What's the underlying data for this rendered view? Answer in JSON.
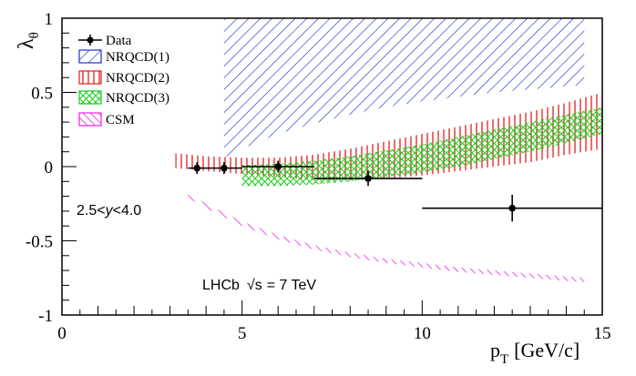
{
  "chart_data": {
    "type": "scatter",
    "xlabel": "p",
    "xlabel_sub": "T",
    "xlabel_unit": "[GeV/c]",
    "ylabel": "λ",
    "ylabel_sub": "θ",
    "xlim": [
      0,
      15
    ],
    "ylim": [
      -1,
      1
    ],
    "x_ticks": [
      0,
      5,
      10,
      15
    ],
    "y_ticks": [
      -1,
      -0.5,
      0,
      0.5,
      1
    ],
    "x_tick_labels": [
      "0",
      "5",
      "10",
      "15"
    ],
    "y_tick_labels": [
      "-1",
      "-0.5",
      "0",
      "0.5",
      "1"
    ],
    "legend_position": "top-left",
    "legend": [
      {
        "name": "Data",
        "color": "#000000",
        "style": "marker"
      },
      {
        "name": "NRQCD(1)",
        "color": "#2233cc",
        "style": "hatch-diagonal-down"
      },
      {
        "name": "NRQCD(2)",
        "color": "#e02020",
        "style": "hatch-vertical"
      },
      {
        "name": "NRQCD(3)",
        "color": "#22cc22",
        "style": "hatch-cross"
      },
      {
        "name": "CSM",
        "color": "#ee22ee",
        "style": "hatch-diagonal-up"
      }
    ],
    "data_points": [
      {
        "x": 3.75,
        "y": -0.01,
        "x_low": 3.5,
        "x_high": 4.0,
        "y_err": 0.04
      },
      {
        "x": 4.5,
        "y": -0.01,
        "x_low": 4.0,
        "x_high": 5.0,
        "y_err": 0.04
      },
      {
        "x": 6.0,
        "y": 0.0,
        "x_low": 5.0,
        "x_high": 7.0,
        "y_err": 0.04
      },
      {
        "x": 8.5,
        "y": -0.08,
        "x_low": 7.0,
        "x_high": 10.0,
        "y_err": 0.05
      },
      {
        "x": 12.5,
        "y": -0.28,
        "x_low": 10.0,
        "x_high": 15.0,
        "y_err": 0.09
      }
    ],
    "bands": [
      {
        "name": "NRQCD(1)",
        "color": "#2233cc",
        "hatch": "diag-down",
        "x": [
          4.5,
          5,
          6,
          7,
          8,
          9,
          10,
          11,
          12,
          13,
          14,
          14.5
        ],
        "low": [
          0.06,
          0.12,
          0.22,
          0.29,
          0.35,
          0.4,
          0.44,
          0.47,
          0.5,
          0.52,
          0.54,
          0.55
        ],
        "high": [
          1,
          1,
          1,
          1,
          1,
          1,
          1,
          1,
          1,
          1,
          1,
          1
        ]
      },
      {
        "name": "NRQCD(2)",
        "color": "#e02020",
        "hatch": "vertical",
        "x": [
          3.15,
          4,
          5,
          6,
          7,
          8,
          9,
          10,
          11,
          12,
          13,
          14,
          15
        ],
        "low": [
          -0.01,
          -0.03,
          -0.05,
          -0.07,
          -0.09,
          -0.09,
          -0.08,
          -0.06,
          -0.03,
          0.0,
          0.03,
          0.08,
          0.12
        ],
        "high": [
          0.09,
          0.07,
          0.06,
          0.06,
          0.08,
          0.12,
          0.17,
          0.22,
          0.27,
          0.32,
          0.37,
          0.43,
          0.5
        ]
      },
      {
        "name": "NRQCD(3)",
        "color": "#22cc22",
        "hatch": "cross",
        "x": [
          5,
          6,
          7,
          8,
          9,
          10,
          11,
          12,
          13,
          14,
          15
        ],
        "low": [
          -0.13,
          -0.13,
          -0.12,
          -0.1,
          -0.07,
          -0.04,
          0.0,
          0.05,
          0.1,
          0.16,
          0.22
        ],
        "high": [
          0.01,
          0.02,
          0.04,
          0.07,
          0.11,
          0.15,
          0.2,
          0.25,
          0.3,
          0.35,
          0.4
        ]
      },
      {
        "name": "CSM",
        "color": "#ee22ee",
        "hatch": "diag-up",
        "x": [
          3.5,
          4,
          5,
          6,
          7,
          8,
          9,
          10,
          11,
          12,
          13,
          14,
          14.5
        ],
        "low": [
          -0.21,
          -0.28,
          -0.4,
          -0.49,
          -0.56,
          -0.61,
          -0.65,
          -0.68,
          -0.71,
          -0.73,
          -0.75,
          -0.77,
          -0.78
        ],
        "high": [
          -0.18,
          -0.25,
          -0.37,
          -0.46,
          -0.53,
          -0.58,
          -0.62,
          -0.65,
          -0.68,
          -0.7,
          -0.72,
          -0.74,
          -0.75
        ]
      }
    ],
    "annotations": {
      "rapidity_prefix": "2.5<",
      "rapidity_var": "y",
      "rapidity_suffix": "<4.0",
      "experiment": "LHCb",
      "sqrt_symbol": "√",
      "sqrt_arg": "s",
      "energy": "= 7 TeV"
    }
  }
}
